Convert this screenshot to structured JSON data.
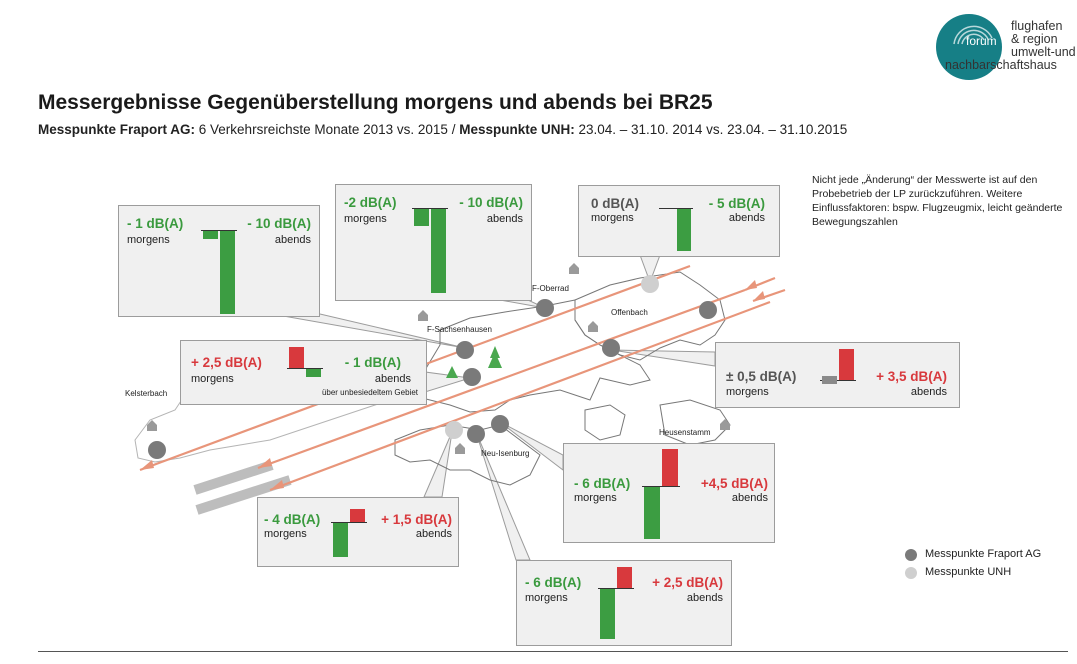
{
  "title": "Messergebnisse Gegenüberstellung morgens und abends bei BR25",
  "subtitle": {
    "part1_bold": "Messpunkte Fraport AG:",
    "part1": " 6 Verkehrsreichste Monate 2013 vs. 2015",
    "sep": "/",
    "part2_bold": "Messpunkte UNH:",
    "part2": " 23.04. – 31.10. 2014 vs. 23.04. – 31.10.2015"
  },
  "note": "Nicht jede „Änderung“ der Messwerte ist auf den Probebetrieb der LP zurückzuführen. Weitere Einflussfaktoren: bspw. Flugzeugmix, leicht geänderte Bewegungszahlen",
  "logo": {
    "line1": "forum",
    "line1b": "flughafen",
    "line2": "& region",
    "line3": "umwelt-und",
    "line4": "nachbarschaftshaus"
  },
  "labels": {
    "morgens": "morgens",
    "abends": "abends",
    "unbesiedelt": "über unbesiedeltem Gebiet"
  },
  "places": {
    "oberrad": "F-Oberrad",
    "sachsenhausen": "F-Sachsenhausen",
    "offenbach": "Offenbach",
    "kelsterbach": "Kelsterbach",
    "heusenstamm": "Heusenstamm",
    "neuisenburg": "Neu-Isenburg"
  },
  "boxes": {
    "b1": {
      "morgens": "- 1 dB(A)",
      "abends": "- 10 dB(A)",
      "morgens_val": -1,
      "abends_val": -10
    },
    "b2": {
      "morgens": "-2 dB(A)",
      "abends": "- 10 dB(A)",
      "morgens_val": -2,
      "abends_val": -10
    },
    "b3": {
      "morgens": "0 dB(A)",
      "abends": "- 5 dB(A)",
      "morgens_val": 0,
      "abends_val": -5
    },
    "b4": {
      "morgens": "+ 2,5 dB(A)",
      "abends": "- 1 dB(A)",
      "morgens_val": 2.5,
      "abends_val": -1
    },
    "b5": {
      "morgens": "± 0,5 dB(A)",
      "abends": "+ 3,5 dB(A)",
      "morgens_val": 0.5,
      "abends_val": 3.5
    },
    "b6": {
      "morgens": "- 6 dB(A)",
      "abends": "+4,5 dB(A)",
      "morgens_val": -6,
      "abends_val": 4.5
    },
    "b7": {
      "morgens": "- 4 dB(A)",
      "abends": "+ 1,5 dB(A)",
      "morgens_val": -4,
      "abends_val": 1.5
    },
    "b8": {
      "morgens": "- 6 dB(A)",
      "abends": "+ 2,5 dB(A)",
      "morgens_val": -6,
      "abends_val": 2.5
    }
  },
  "legend": {
    "fraport": "Messpunkte Fraport AG",
    "unh": "Messpunkte UNH"
  },
  "colors": {
    "decrease": "#3c9d42",
    "increase": "#d8393d",
    "neutral": "#8a8a8a",
    "fraport_point": "#7a7a7a",
    "unh_point": "#cfcfcf",
    "flight_path": "#e8957a"
  }
}
